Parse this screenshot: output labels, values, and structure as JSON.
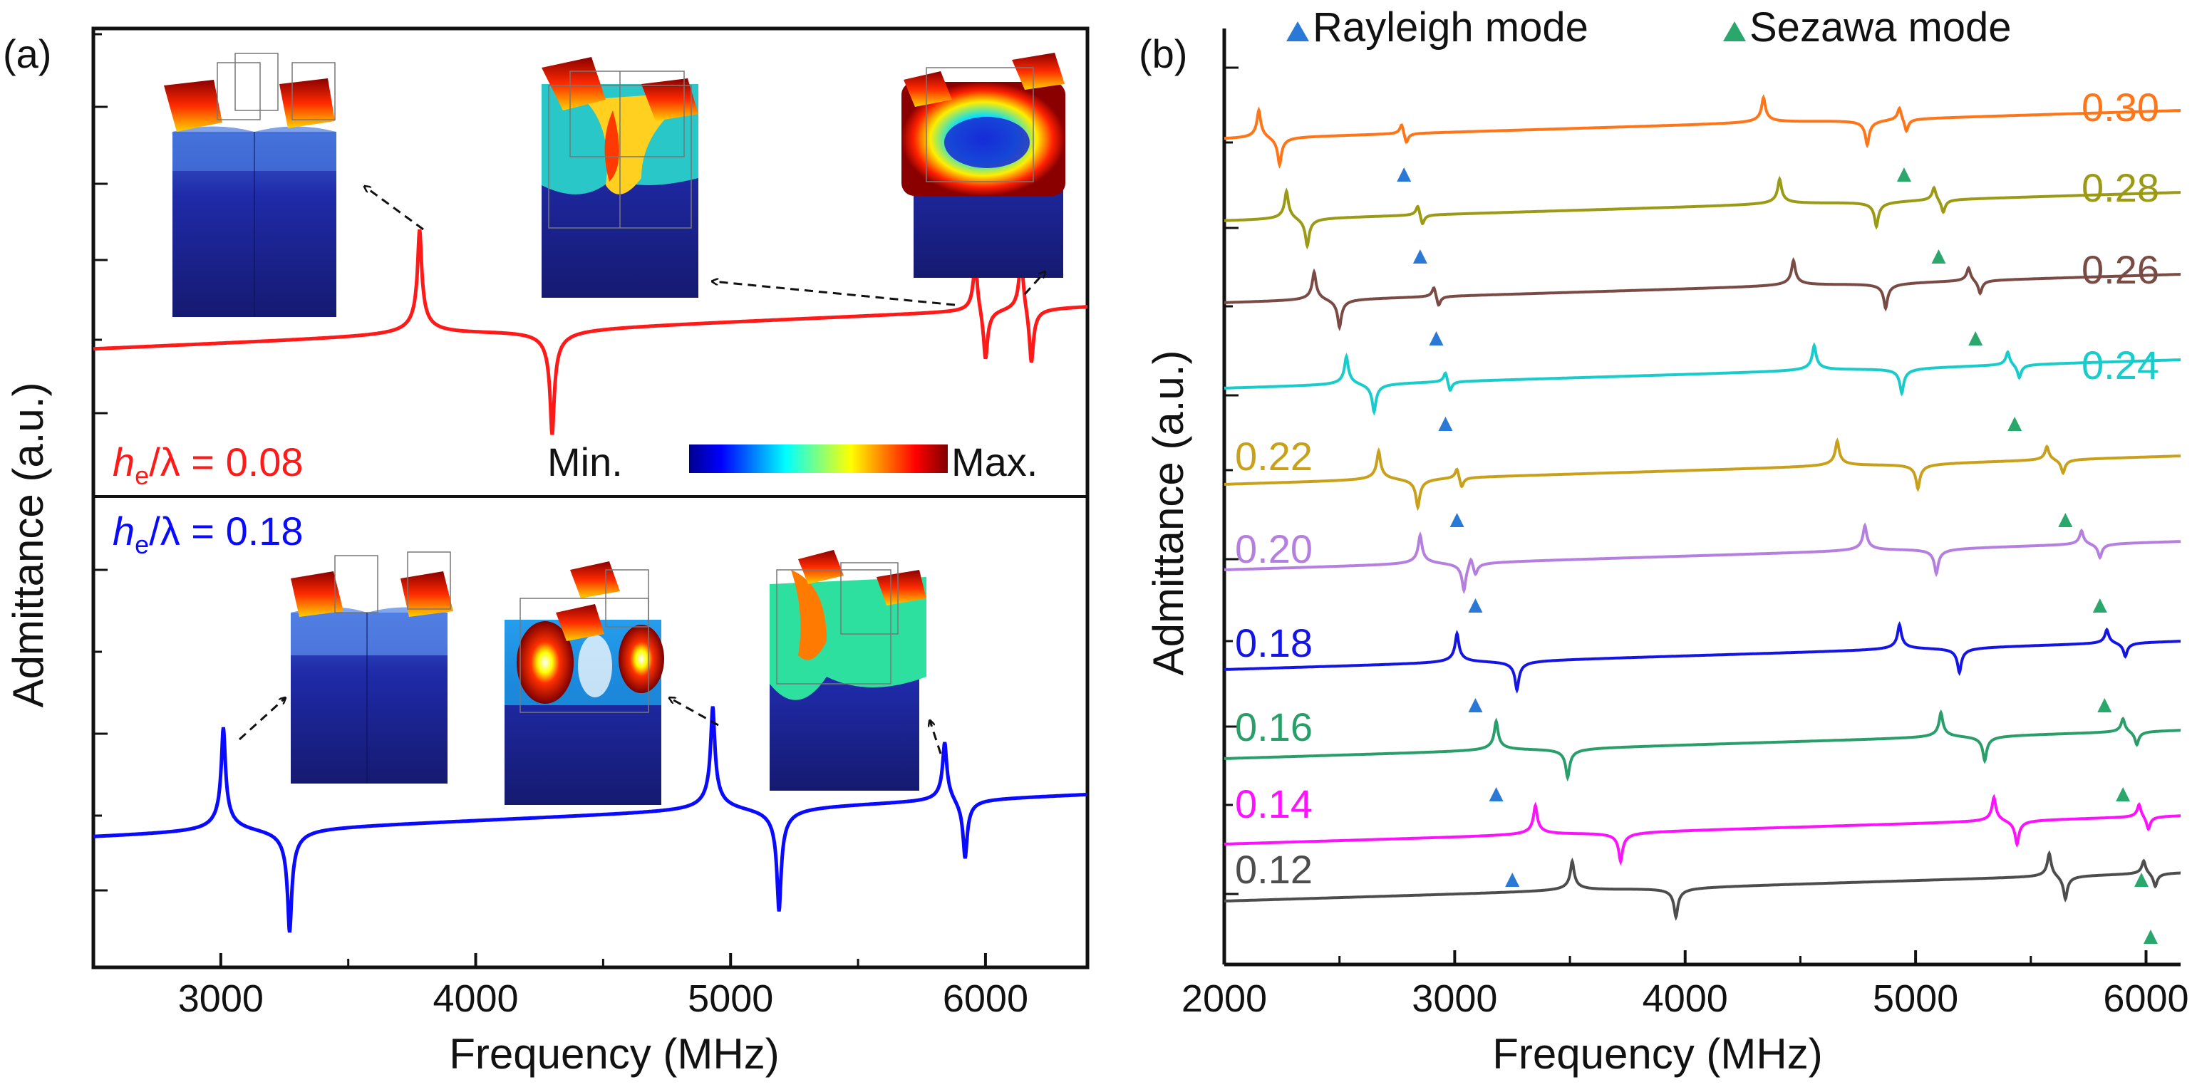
{
  "chart_data": [
    {
      "panel": "(a)",
      "type": "line",
      "xlabel": "Frequency (MHz)",
      "ylabel": "Admittance (a.u.)",
      "xlim": [
        2500,
        6400
      ],
      "xticks": [
        "3000",
        "4000",
        "5000",
        "6000"
      ],
      "series": [
        {
          "name": "h_e/λ = 0.08",
          "label_italic": "h",
          "label_sub": "e",
          "label_rest": "/λ = 0.08",
          "color": "#ff1a1a",
          "resonances": [
            {
              "fr": 3780,
              "fa": 4300,
              "strength": 1.0
            },
            {
              "fr": 5960,
              "fa": 6000,
              "strength": 0.55
            },
            {
              "fr": 6140,
              "fa": 6180,
              "strength": 0.6
            }
          ]
        },
        {
          "name": "h_e/λ = 0.18",
          "label_italic": "h",
          "label_sub": "e",
          "label_rest": "/λ = 0.18",
          "color": "#0a0aff",
          "resonances": [
            {
              "fr": 3010,
              "fa": 3270,
              "strength": 1.0
            },
            {
              "fr": 4930,
              "fa": 5190,
              "strength": 1.0
            },
            {
              "fr": 5840,
              "fa": 5920,
              "strength": 0.6
            }
          ]
        }
      ],
      "colorbar": {
        "min_label": "Min.",
        "max_label": "Max."
      },
      "insets": [
        {
          "name": "mode-shape-a1"
        },
        {
          "name": "mode-shape-a2"
        },
        {
          "name": "mode-shape-a3"
        },
        {
          "name": "mode-shape-b1"
        },
        {
          "name": "mode-shape-b2"
        },
        {
          "name": "mode-shape-b3"
        }
      ]
    },
    {
      "panel": "(b)",
      "type": "line",
      "xlabel": "Frequency (MHz)",
      "ylabel": "Admittance (a.u.)",
      "xlim": [
        2000,
        6150
      ],
      "xticks": [
        "2000",
        "3000",
        "4000",
        "5000",
        "6000"
      ],
      "legend": [
        {
          "label": "Rayleigh mode",
          "color": "#2b79d6"
        },
        {
          "label": "Sezawa mode",
          "color": "#2aa86b"
        }
      ],
      "series": [
        {
          "name": "0.30",
          "color": "#ff7518",
          "rayleigh": [
            2150,
            2240
          ],
          "r2": [
            2770,
            2790
          ],
          "main": [
            4340,
            4790
          ],
          "sezawa": [
            4930,
            4960
          ],
          "markers": {
            "rayleigh": 2780,
            "sezawa": 4950
          }
        },
        {
          "name": "0.28",
          "color": "#9a9a14",
          "rayleigh": [
            2270,
            2360
          ],
          "r2": [
            2840,
            2860
          ],
          "main": [
            4410,
            4830
          ],
          "sezawa": [
            5080,
            5120
          ],
          "markers": {
            "rayleigh": 2850,
            "sezawa": 5100
          }
        },
        {
          "name": "0.26",
          "color": "#7a4a44",
          "rayleigh": [
            2390,
            2500
          ],
          "r2": [
            2910,
            2930
          ],
          "main": [
            4470,
            4870
          ],
          "sezawa": [
            5230,
            5280
          ],
          "markers": {
            "rayleigh": 2920,
            "sezawa": 5260
          }
        },
        {
          "name": "0.24",
          "color": "#19cccc",
          "rayleigh": [
            2530,
            2650
          ],
          "r2": [
            2960,
            2980
          ],
          "main": [
            4560,
            4940
          ],
          "sezawa": [
            5400,
            5450
          ],
          "markers": {
            "rayleigh": 2960,
            "sezawa": 5430
          }
        },
        {
          "name": "0.22",
          "color": "#c8a01a",
          "rayleigh": [
            2670,
            2840
          ],
          "r2": [
            3010,
            3030
          ],
          "main": [
            4660,
            5010
          ],
          "sezawa": [
            5570,
            5640
          ],
          "markers": {
            "rayleigh": 3010,
            "sezawa": 5650
          }
        },
        {
          "name": "0.20",
          "color": "#b57fe0",
          "rayleigh": [
            2850,
            3040
          ],
          "r2": [
            3070,
            3090
          ],
          "main": [
            4780,
            5090
          ],
          "sezawa": [
            5720,
            5800
          ],
          "markers": {
            "rayleigh": 3090,
            "sezawa": 5800
          }
        },
        {
          "name": "0.18",
          "color": "#1414e6",
          "rayleigh": [
            3010,
            3270
          ],
          "r2": null,
          "main": [
            4930,
            5190
          ],
          "sezawa": [
            5830,
            5910
          ],
          "markers": {
            "rayleigh": 3090,
            "sezawa": 5820
          }
        },
        {
          "name": "0.16",
          "color": "#2a9e6a",
          "rayleigh": [
            3180,
            3490
          ],
          "r2": null,
          "main": [
            5110,
            5300
          ],
          "sezawa": [
            5900,
            5960
          ],
          "markers": {
            "rayleigh": 3180,
            "sezawa": 5900
          }
        },
        {
          "name": "0.14",
          "color": "#ff10ff",
          "rayleigh": [
            3350,
            3720
          ],
          "r2": null,
          "main": [
            5340,
            5440
          ],
          "sezawa": [
            5970,
            6010
          ],
          "markers": {
            "rayleigh": 3250,
            "sezawa": 5980
          }
        },
        {
          "name": "0.12",
          "color": "#4d4d4d",
          "rayleigh": [
            3510,
            3960
          ],
          "r2": null,
          "main": [
            5580,
            5650
          ],
          "sezawa": [
            5990,
            6040
          ],
          "markers": {
            "rayleigh": null,
            "sezawa": 6020
          }
        }
      ]
    }
  ]
}
